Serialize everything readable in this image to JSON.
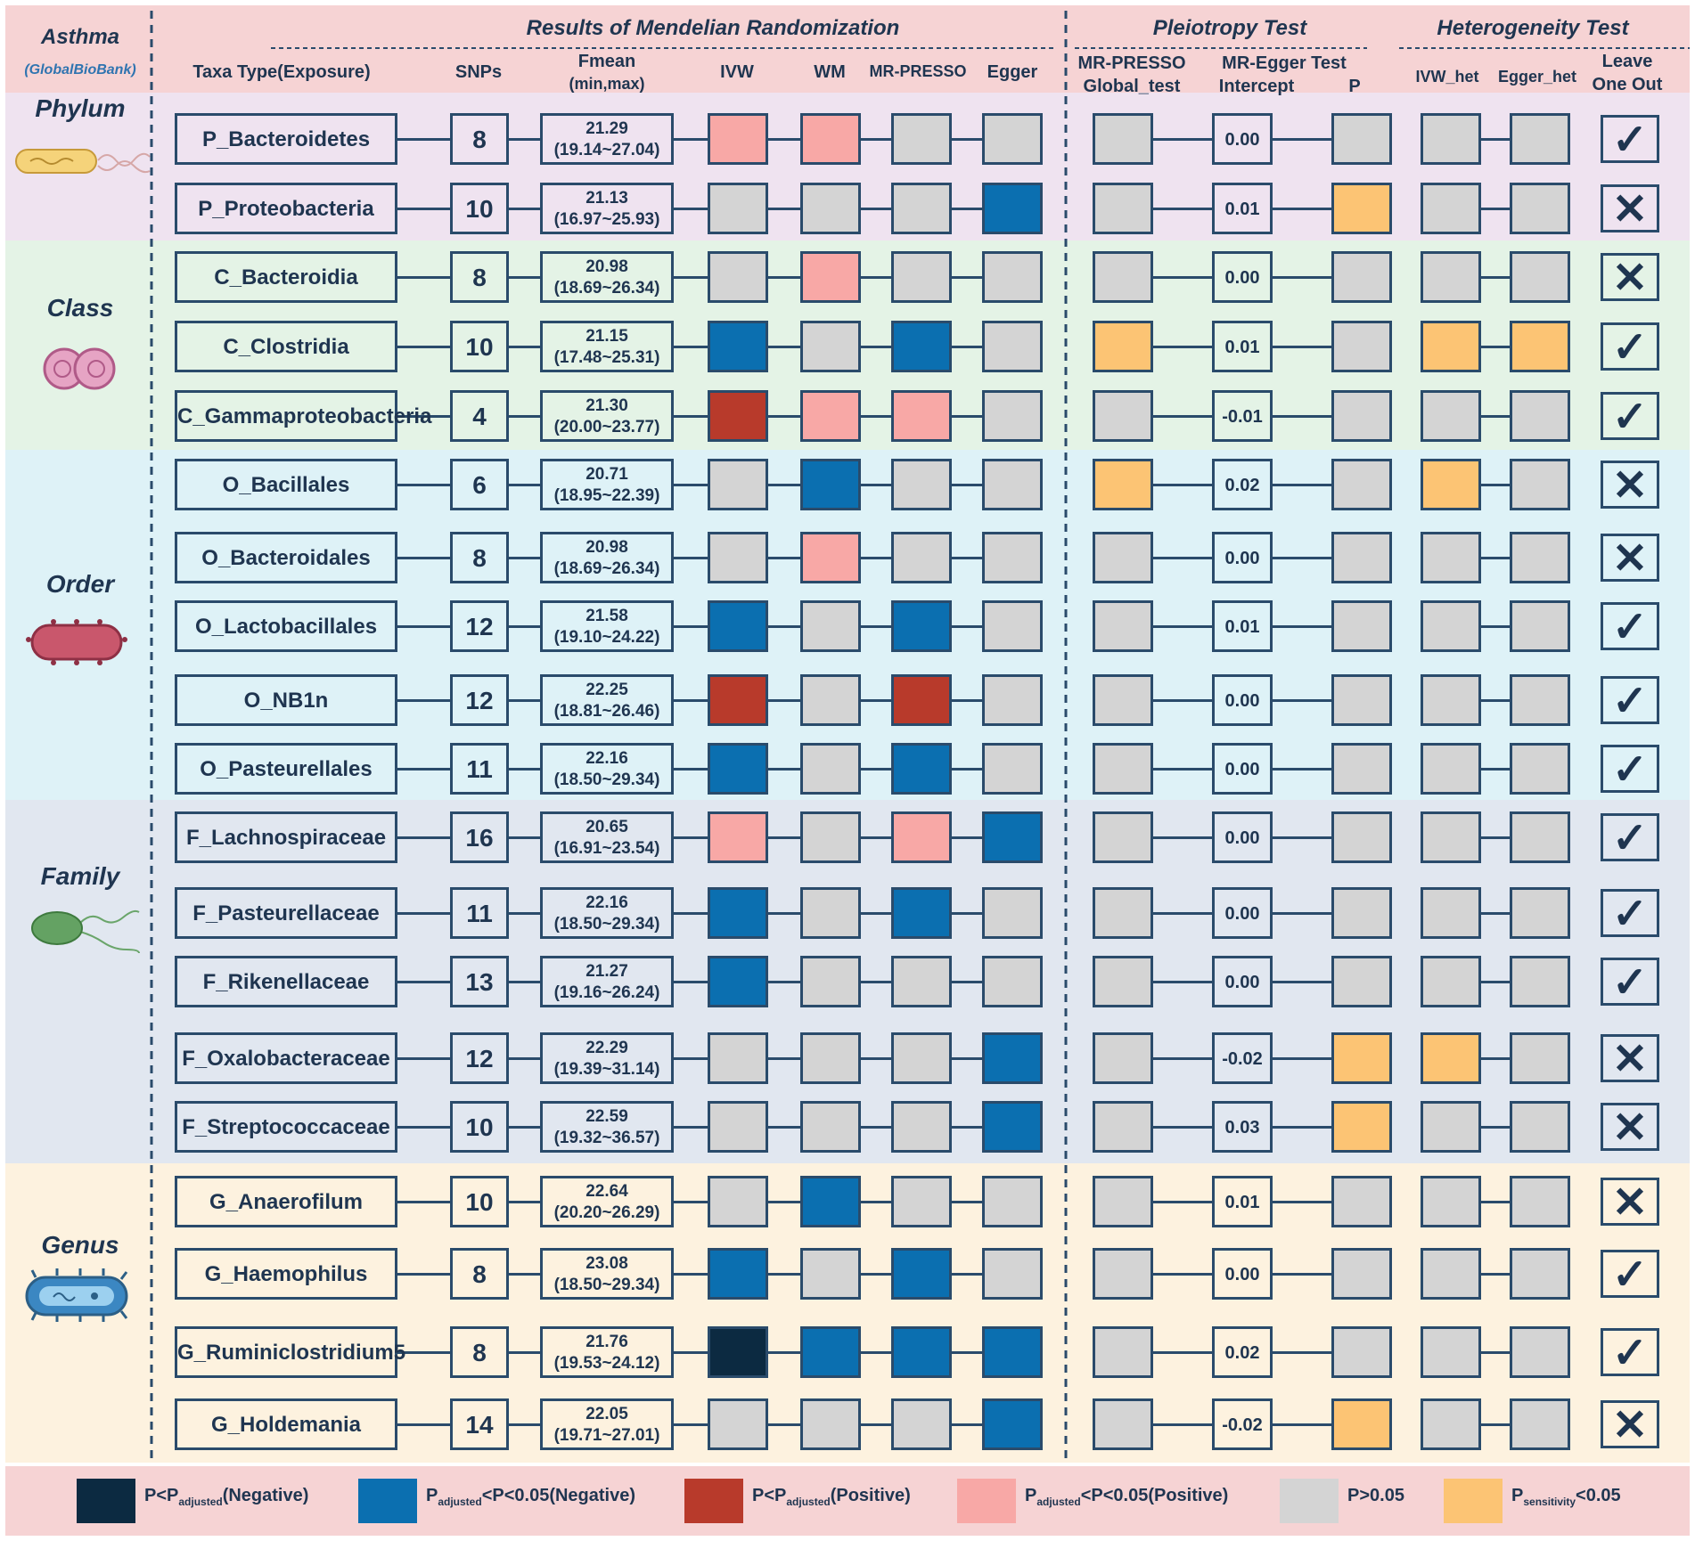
{
  "title": "Results of Mendelian Randomization",
  "outcome": "Asthma",
  "source": "(GlobalBioBank)",
  "sections": {
    "pleiotropy": "Pleiotropy Test",
    "heterogeneity": "Heterogeneity Test"
  },
  "columns": {
    "taxa": "Taxa Type(Exposure)",
    "snps": "SNPs",
    "fmean_1": "Fmean",
    "fmean_2": "(min,max)",
    "ivw": "IVW",
    "wm": "WM",
    "mrpresso": "MR-PRESSO",
    "egger": "Egger",
    "global_1": "MR-PRESSO",
    "global_2": "Global_test",
    "eggertest": "MR-Egger Test",
    "intercept": "Intercept",
    "p": "P",
    "ivw_het": "IVW_het",
    "egger_het": "Egger_het",
    "loo_1": "Leave",
    "loo_2": "One Out"
  },
  "categories": [
    "Phylum",
    "Class",
    "Order",
    "Family",
    "Genus"
  ],
  "colors": {
    "neg_strong": "#0c2a41",
    "neg": "#0b6fb0",
    "pos_strong": "#b83a2b",
    "pos": "#f8a8a6",
    "ns": "#d4d4d4",
    "sens": "#fcc474"
  },
  "legend": [
    {
      "key": "neg_strong",
      "pre": "P<P",
      "sub": "adjusted",
      "post": "(Negative)"
    },
    {
      "key": "neg",
      "pre": "P",
      "sub": "adjusted",
      "post": "<P<0.05(Negative)"
    },
    {
      "key": "pos_strong",
      "pre": "P<P",
      "sub": "adjusted",
      "post": "(Positive)"
    },
    {
      "key": "pos",
      "pre": "P",
      "sub": "adjusted",
      "post": "<P<0.05(Positive)"
    },
    {
      "key": "ns",
      "pre": "P>0.05",
      "sub": "",
      "post": ""
    },
    {
      "key": "sens",
      "pre": "P",
      "sub": "sensitivity",
      "post": "<0.05"
    }
  ],
  "rows": [
    {
      "name": "P_Bacteroidetes",
      "snps": "8",
      "fmean": "21.29",
      "range": "(19.14~27.04)",
      "ivw": "pos",
      "wm": "pos",
      "presso": "ns",
      "egger": "ns",
      "global": "ns",
      "intercept": "0.00",
      "p": "ns",
      "ivw_het": "ns",
      "egger_het": "ns",
      "loo": "✓"
    },
    {
      "name": "P_Proteobacteria",
      "snps": "10",
      "fmean": "21.13",
      "range": "(16.97~25.93)",
      "ivw": "ns",
      "wm": "ns",
      "presso": "ns",
      "egger": "neg",
      "global": "ns",
      "intercept": "0.01",
      "p": "sens",
      "ivw_het": "ns",
      "egger_het": "ns",
      "loo": "✕"
    },
    {
      "name": "C_Bacteroidia",
      "snps": "8",
      "fmean": "20.98",
      "range": "(18.69~26.34)",
      "ivw": "ns",
      "wm": "pos",
      "presso": "ns",
      "egger": "ns",
      "global": "ns",
      "intercept": "0.00",
      "p": "ns",
      "ivw_het": "ns",
      "egger_het": "ns",
      "loo": "✕"
    },
    {
      "name": "C_Clostridia",
      "snps": "10",
      "fmean": "21.15",
      "range": "(17.48~25.31)",
      "ivw": "neg",
      "wm": "ns",
      "presso": "neg",
      "egger": "ns",
      "global": "sens",
      "intercept": "0.01",
      "p": "ns",
      "ivw_het": "sens",
      "egger_het": "sens",
      "loo": "✓"
    },
    {
      "name": "C_Gammaproteobacteria",
      "snps": "4",
      "fmean": "21.30",
      "range": "(20.00~23.77)",
      "ivw": "pos_strong",
      "wm": "pos",
      "presso": "pos",
      "egger": "ns",
      "global": "ns",
      "intercept": "-0.01",
      "p": "ns",
      "ivw_het": "ns",
      "egger_het": "ns",
      "loo": "✓"
    },
    {
      "name": "O_Bacillales",
      "snps": "6",
      "fmean": "20.71",
      "range": "(18.95~22.39)",
      "ivw": "ns",
      "wm": "neg",
      "presso": "ns",
      "egger": "ns",
      "global": "sens",
      "intercept": "0.02",
      "p": "ns",
      "ivw_het": "sens",
      "egger_het": "ns",
      "loo": "✕"
    },
    {
      "name": "O_Bacteroidales",
      "snps": "8",
      "fmean": "20.98",
      "range": "(18.69~26.34)",
      "ivw": "ns",
      "wm": "pos",
      "presso": "ns",
      "egger": "ns",
      "global": "ns",
      "intercept": "0.00",
      "p": "ns",
      "ivw_het": "ns",
      "egger_het": "ns",
      "loo": "✕"
    },
    {
      "name": "O_Lactobacillales",
      "snps": "12",
      "fmean": "21.58",
      "range": "(19.10~24.22)",
      "ivw": "neg",
      "wm": "ns",
      "presso": "neg",
      "egger": "ns",
      "global": "ns",
      "intercept": "0.01",
      "p": "ns",
      "ivw_het": "ns",
      "egger_het": "ns",
      "loo": "✓"
    },
    {
      "name": "O_NB1n",
      "snps": "12",
      "fmean": "22.25",
      "range": "(18.81~26.46)",
      "ivw": "pos_strong",
      "wm": "ns",
      "presso": "pos_strong",
      "egger": "ns",
      "global": "ns",
      "intercept": "0.00",
      "p": "ns",
      "ivw_het": "ns",
      "egger_het": "ns",
      "loo": "✓"
    },
    {
      "name": "O_Pasteurellales",
      "snps": "11",
      "fmean": "22.16",
      "range": "(18.50~29.34)",
      "ivw": "neg",
      "wm": "ns",
      "presso": "neg",
      "egger": "ns",
      "global": "ns",
      "intercept": "0.00",
      "p": "ns",
      "ivw_het": "ns",
      "egger_het": "ns",
      "loo": "✓"
    },
    {
      "name": "F_Lachnospiraceae",
      "snps": "16",
      "fmean": "20.65",
      "range": "(16.91~23.54)",
      "ivw": "pos",
      "wm": "ns",
      "presso": "pos",
      "egger": "neg",
      "global": "ns",
      "intercept": "0.00",
      "p": "ns",
      "ivw_het": "ns",
      "egger_het": "ns",
      "loo": "✓"
    },
    {
      "name": "F_Pasteurellaceae",
      "snps": "11",
      "fmean": "22.16",
      "range": "(18.50~29.34)",
      "ivw": "neg",
      "wm": "ns",
      "presso": "neg",
      "egger": "ns",
      "global": "ns",
      "intercept": "0.00",
      "p": "ns",
      "ivw_het": "ns",
      "egger_het": "ns",
      "loo": "✓"
    },
    {
      "name": "F_Rikenellaceae",
      "snps": "13",
      "fmean": "21.27",
      "range": "(19.16~26.24)",
      "ivw": "neg",
      "wm": "ns",
      "presso": "ns",
      "egger": "ns",
      "global": "ns",
      "intercept": "0.00",
      "p": "ns",
      "ivw_het": "ns",
      "egger_het": "ns",
      "loo": "✓"
    },
    {
      "name": "F_Oxalobacteraceae",
      "snps": "12",
      "fmean": "22.29",
      "range": "(19.39~31.14)",
      "ivw": "ns",
      "wm": "ns",
      "presso": "ns",
      "egger": "neg",
      "global": "ns",
      "intercept": "-0.02",
      "p": "sens",
      "ivw_het": "sens",
      "egger_het": "ns",
      "loo": "✕"
    },
    {
      "name": "F_Streptococcaceae",
      "snps": "10",
      "fmean": "22.59",
      "range": "(19.32~36.57)",
      "ivw": "ns",
      "wm": "ns",
      "presso": "ns",
      "egger": "neg",
      "global": "ns",
      "intercept": "0.03",
      "p": "sens",
      "ivw_het": "ns",
      "egger_het": "ns",
      "loo": "✕"
    },
    {
      "name": "G_Anaerofilum",
      "snps": "10",
      "fmean": "22.64",
      "range": "(20.20~26.29)",
      "ivw": "ns",
      "wm": "neg",
      "presso": "ns",
      "egger": "ns",
      "global": "ns",
      "intercept": "0.01",
      "p": "ns",
      "ivw_het": "ns",
      "egger_het": "ns",
      "loo": "✕"
    },
    {
      "name": "G_Haemophilus",
      "snps": "8",
      "fmean": "23.08",
      "range": "(18.50~29.34)",
      "ivw": "neg",
      "wm": "ns",
      "presso": "neg",
      "egger": "ns",
      "global": "ns",
      "intercept": "0.00",
      "p": "ns",
      "ivw_het": "ns",
      "egger_het": "ns",
      "loo": "✓"
    },
    {
      "name": "G_Ruminiclostridium5",
      "snps": "8",
      "fmean": "21.76",
      "range": "(19.53~24.12)",
      "ivw": "neg_strong",
      "wm": "neg",
      "presso": "neg",
      "egger": "neg",
      "global": "ns",
      "intercept": "0.02",
      "p": "ns",
      "ivw_het": "ns",
      "egger_het": "ns",
      "loo": "✓"
    },
    {
      "name": "G_Holdemania",
      "snps": "14",
      "fmean": "22.05",
      "range": "(19.71~27.01)",
      "ivw": "ns",
      "wm": "ns",
      "presso": "ns",
      "egger": "neg",
      "global": "ns",
      "intercept": "-0.02",
      "p": "sens",
      "ivw_het": "ns",
      "egger_het": "ns",
      "loo": "✕"
    }
  ]
}
